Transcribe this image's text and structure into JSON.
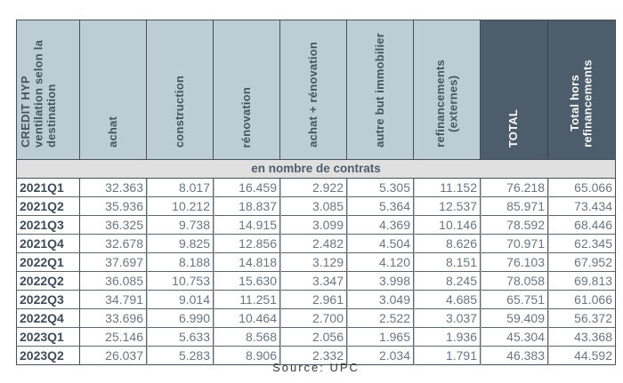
{
  "chart_data": {
    "type": "table",
    "title": "CREDIT HYP ventilation selon la destination",
    "corner_header_lines": "CREDIT HYP\nventilation selon la\ndestination",
    "columns": [
      "achat",
      "construction",
      "rénovation",
      "achat + rénovation",
      "autre but immobilier",
      "refinancements\n(externes)",
      "TOTAL",
      "Total hors\nrefinancements"
    ],
    "unit_banner": "en nombre de contrats",
    "rows": [
      {
        "label": "2021Q1",
        "values": [
          "32.363",
          "8.017",
          "16.459",
          "2.922",
          "5.305",
          "11.152",
          "76.218",
          "65.066"
        ]
      },
      {
        "label": "2021Q2",
        "values": [
          "35.936",
          "10.212",
          "18.837",
          "3.085",
          "5.364",
          "12.537",
          "85.971",
          "73.434"
        ]
      },
      {
        "label": "2021Q3",
        "values": [
          "36.325",
          "9.738",
          "14.915",
          "3.099",
          "4.369",
          "10.146",
          "78.592",
          "68.446"
        ]
      },
      {
        "label": "2021Q4",
        "values": [
          "32.678",
          "9.825",
          "12.856",
          "2.482",
          "4.504",
          "8.626",
          "70.971",
          "62.345"
        ]
      },
      {
        "label": "2022Q1",
        "values": [
          "37.697",
          "8.188",
          "14.818",
          "3.129",
          "4.120",
          "8.151",
          "76.103",
          "67.952"
        ]
      },
      {
        "label": "2022Q2",
        "values": [
          "36.085",
          "10.753",
          "15.630",
          "3.347",
          "3.998",
          "8.245",
          "78.058",
          "69.813"
        ]
      },
      {
        "label": "2022Q3",
        "values": [
          "34.791",
          "9.014",
          "11.251",
          "2.961",
          "3.049",
          "4.685",
          "65.751",
          "61.066"
        ]
      },
      {
        "label": "2022Q4",
        "values": [
          "33.696",
          "6.990",
          "10.464",
          "2.700",
          "2.522",
          "3.037",
          "59.409",
          "56.372"
        ]
      },
      {
        "label": "2023Q1",
        "values": [
          "25.146",
          "5.633",
          "8.568",
          "2.056",
          "1.965",
          "1.936",
          "45.304",
          "43.368"
        ]
      },
      {
        "label": "2023Q2",
        "values": [
          "26.037",
          "5.283",
          "8.906",
          "2.332",
          "2.034",
          "1.791",
          "46.383",
          "44.592"
        ]
      }
    ],
    "source_note": "Source: UPC"
  },
  "colors": {
    "header_light_bg": "#bccdd4",
    "header_dark_bg": "#4e5d6b",
    "subheader_bg": "#e0e0e0",
    "header_text": "#46555f",
    "header_text_dark_cols": "#ffffff",
    "row_label_text": "#3f4c58",
    "value_text": "#6a7680",
    "grid_border": "#47505a"
  }
}
